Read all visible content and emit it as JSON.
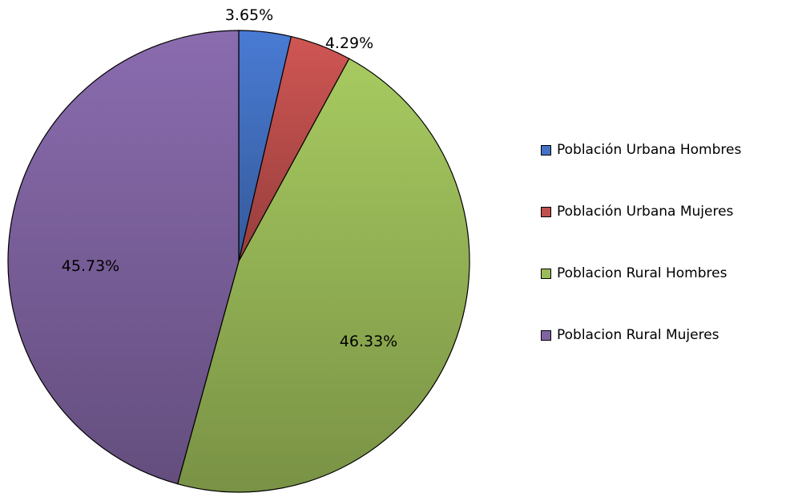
{
  "chart_data": {
    "type": "pie",
    "title": "",
    "start_angle_deg": 0,
    "direction": "clockwise",
    "legend_position": "right",
    "slices": [
      {
        "name": "Población Urbana Hombres",
        "value": 3.65,
        "label": "3.65%",
        "color": "#4472c4"
      },
      {
        "name": "Población Urbana Mujeres",
        "value": 4.29,
        "label": "4.29%",
        "color": "#c0504d"
      },
      {
        "name": "Poblacion Rural Hombres",
        "value": 46.33,
        "label": "46.33%",
        "color": "#9bbb59"
      },
      {
        "name": "Poblacion Rural Mujeres",
        "value": 45.73,
        "label": "45.73%",
        "color": "#8064a2"
      }
    ]
  }
}
